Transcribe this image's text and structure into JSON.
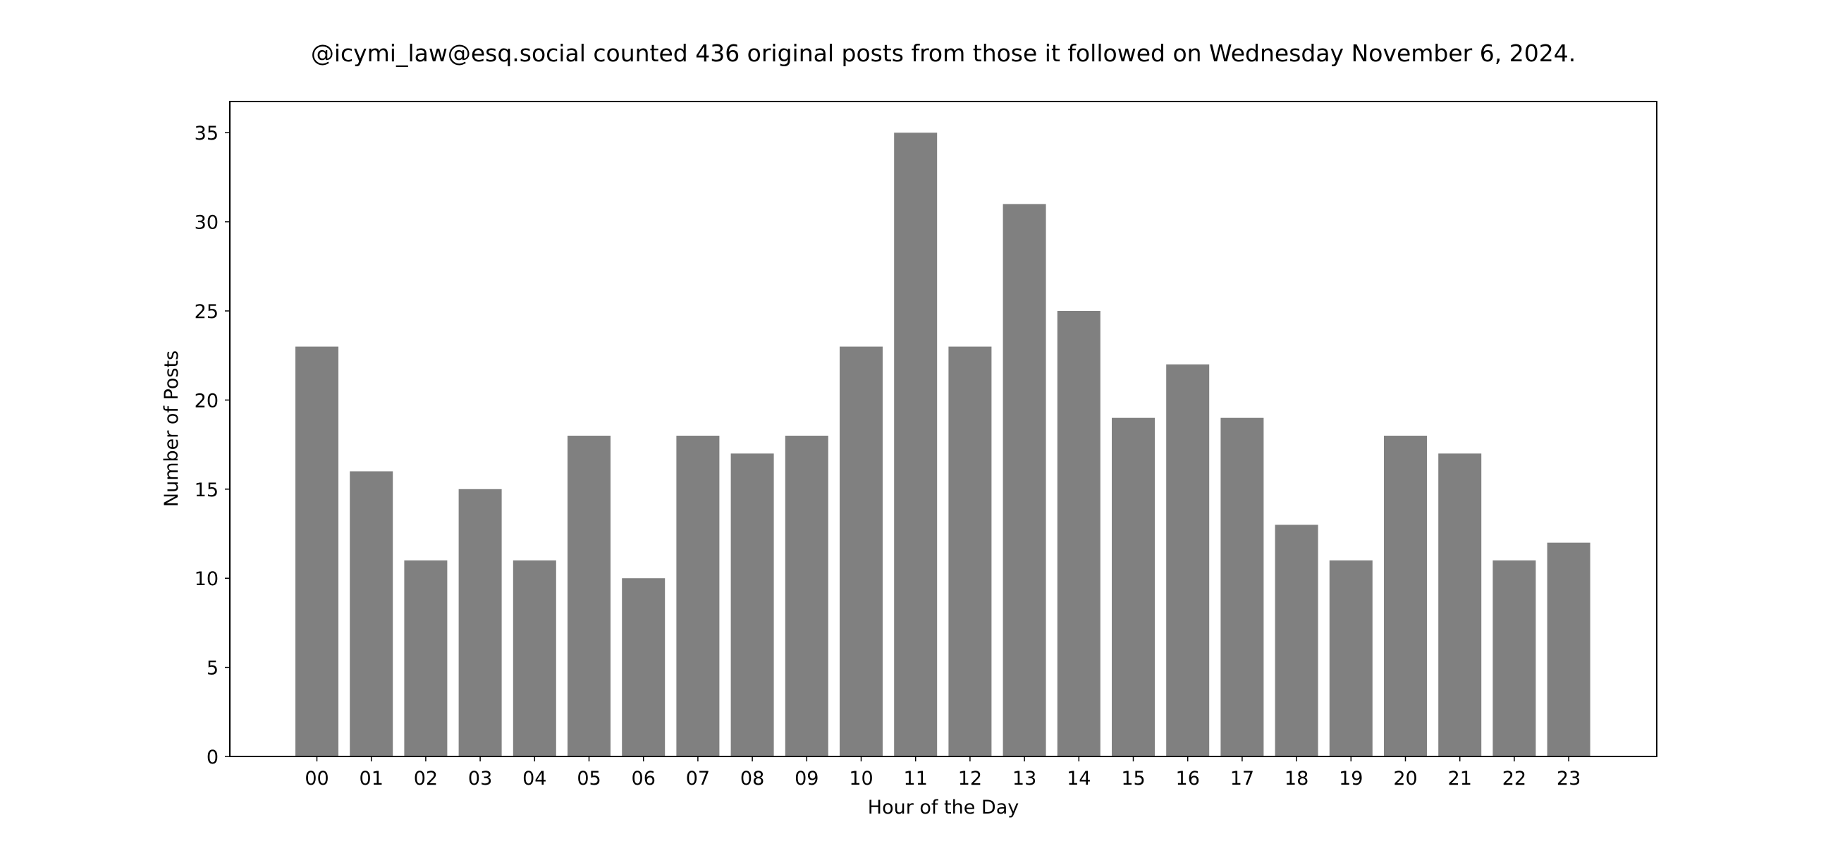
{
  "chart_data": {
    "type": "bar",
    "title": "@icymi_law@esq.social counted 436 original posts from those it followed on Wednesday November 6, 2024.",
    "xlabel": "Hour of the Day",
    "ylabel": "Number of Posts",
    "categories": [
      "00",
      "01",
      "02",
      "03",
      "04",
      "05",
      "06",
      "07",
      "08",
      "09",
      "10",
      "11",
      "12",
      "13",
      "14",
      "15",
      "16",
      "17",
      "18",
      "19",
      "20",
      "21",
      "22",
      "23"
    ],
    "values": [
      23,
      16,
      11,
      15,
      11,
      18,
      10,
      18,
      17,
      18,
      23,
      35,
      23,
      31,
      25,
      19,
      22,
      19,
      13,
      11,
      18,
      17,
      11,
      12
    ],
    "ylim": [
      0,
      36.75
    ],
    "yticks": [
      "0",
      "5",
      "10",
      "15",
      "20",
      "25",
      "30",
      "35"
    ],
    "grid": false,
    "legend": "none",
    "colors": {
      "bar": "#808080",
      "axes": "#000000",
      "background": "#ffffff"
    }
  }
}
